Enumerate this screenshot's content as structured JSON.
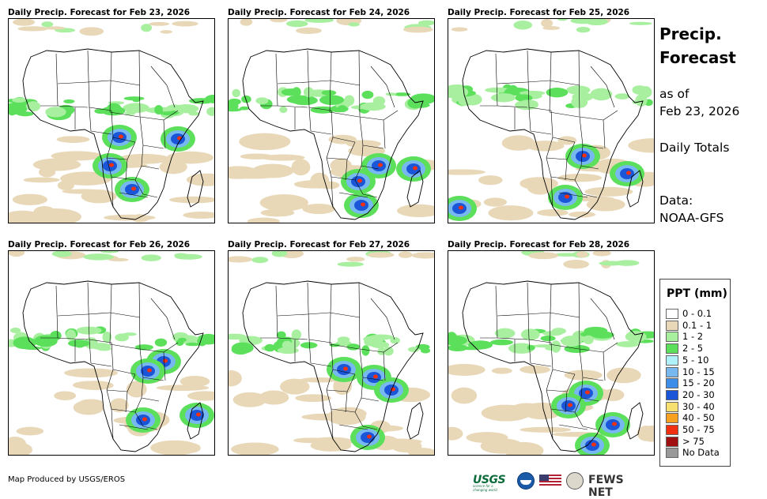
{
  "panels": [
    {
      "title": "Daily Precip. Forecast for Feb 23, 2026"
    },
    {
      "title": "Daily Precip. Forecast for Feb 24, 2026"
    },
    {
      "title": "Daily Precip. Forecast for Feb 25, 2026"
    },
    {
      "title": "Daily Precip. Forecast for Feb 26, 2026"
    },
    {
      "title": "Daily Precip. Forecast for Feb 27, 2026"
    },
    {
      "title": "Daily Precip. Forecast for Feb 28, 2026"
    }
  ],
  "side": {
    "title_line1": "Precip.",
    "title_line2": "Forecast",
    "asof_line1": "as of",
    "asof_line2": "Feb 23, 2026",
    "totals": "Daily Totals",
    "data_line1": "Data:",
    "data_line2": "NOAA-GFS"
  },
  "legend": {
    "title": "PPT (mm)",
    "items": [
      {
        "label": "0 - 0.1",
        "color": "#ffffff"
      },
      {
        "label": "0.1 - 1",
        "color": "#e8d8b8"
      },
      {
        "label": "1 - 2",
        "color": "#a8f0a0"
      },
      {
        "label": "2 - 5",
        "color": "#5ce05c"
      },
      {
        "label": "5 - 10",
        "color": "#b0f0f8"
      },
      {
        "label": "10 - 15",
        "color": "#78b8f0"
      },
      {
        "label": "15 - 20",
        "color": "#3c8ee8"
      },
      {
        "label": "20 - 30",
        "color": "#1c56d8"
      },
      {
        "label": "30 - 40",
        "color": "#f8e070"
      },
      {
        "label": "40 - 50",
        "color": "#f8a020"
      },
      {
        "label": "50 - 75",
        "color": "#f03010"
      },
      {
        "label": "> 75",
        "color": "#a01010"
      },
      {
        "label": "No Data",
        "color": "#999999"
      }
    ]
  },
  "credit": "Map Produced by USGS/EROS",
  "logos": {
    "usgs": "USGS",
    "usgs_tagline": "science for a changing world",
    "fews": "FEWS NET"
  }
}
